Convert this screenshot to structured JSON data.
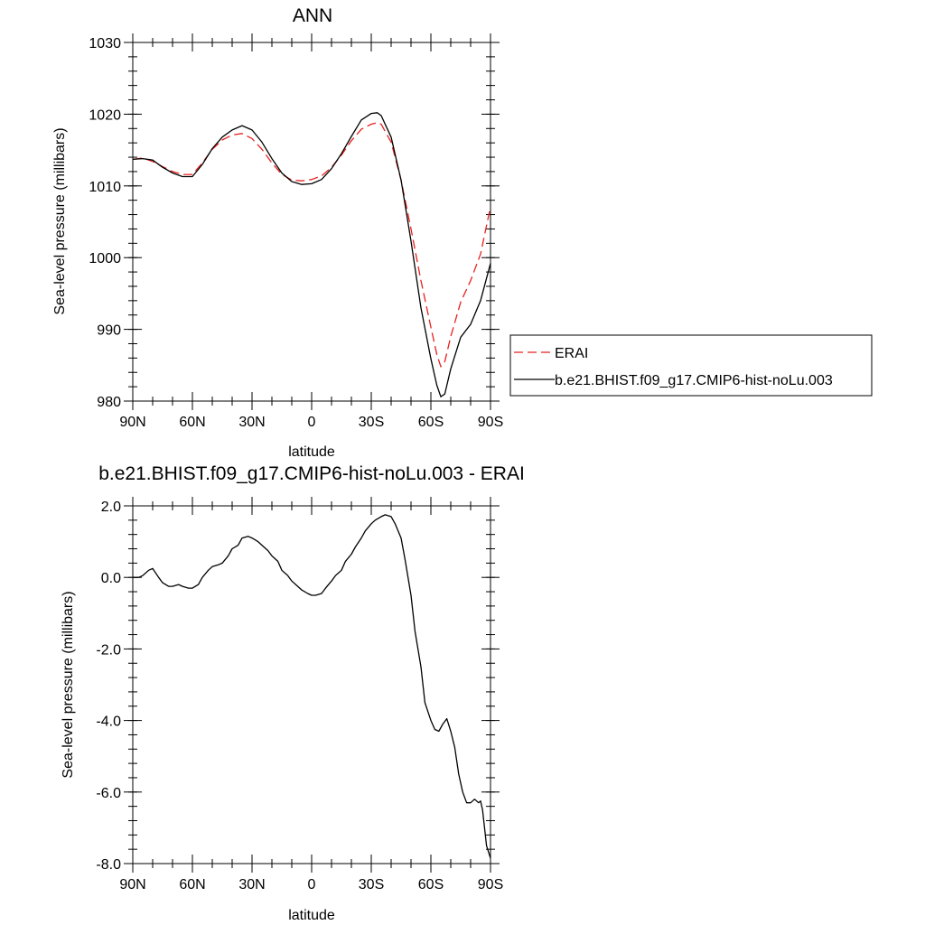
{
  "chart_data": [
    {
      "type": "line",
      "title": "ANN",
      "xlabel": "latitude",
      "ylabel": "Sea-level pressure (millibars)",
      "xlim": [
        90,
        -90
      ],
      "ylim": [
        980,
        1030
      ],
      "xtick_values": [
        90,
        60,
        30,
        0,
        -30,
        -60,
        -90
      ],
      "xtick_labels": [
        "90N",
        "60N",
        "30N",
        "0",
        "30S",
        "60S",
        "90S"
      ],
      "ytick_values": [
        980,
        990,
        1000,
        1010,
        1020,
        1030
      ],
      "ytick_labels": [
        "980",
        "990",
        "1000",
        "1010",
        "1020",
        "1030"
      ],
      "legend_position": "right",
      "series": [
        {
          "name": "ERAI",
          "color": "#e8211e",
          "dash": "dashed",
          "x": [
            90,
            85,
            80,
            75,
            70,
            65,
            60,
            55,
            50,
            45,
            40,
            35,
            30,
            25,
            20,
            15,
            10,
            5,
            0,
            -5,
            -10,
            -15,
            -20,
            -25,
            -30,
            -33,
            -35,
            -40,
            -45,
            -50,
            -55,
            -60,
            -63,
            -65,
            -67,
            -70,
            -75,
            -80,
            -85,
            -90
          ],
          "y": [
            1013.7,
            1013.9,
            1013.4,
            1012.7,
            1012.0,
            1011.6,
            1011.6,
            1013.2,
            1015.1,
            1016.4,
            1017.1,
            1017.3,
            1016.6,
            1015.1,
            1013.2,
            1011.6,
            1010.8,
            1010.7,
            1010.9,
            1011.4,
            1012.6,
            1014.3,
            1016.3,
            1017.9,
            1018.6,
            1018.8,
            1018.6,
            1016.1,
            1010.8,
            1004.0,
            996.8,
            990.3,
            986.5,
            984.8,
            985.5,
            989.0,
            993.8,
            996.8,
            1000.5,
            1007.1
          ]
        },
        {
          "name": "b.e21.BHIST.f09_g17.CMIP6-hist-noLu.003",
          "color": "#000000",
          "dash": "solid",
          "x": [
            90,
            85,
            80,
            75,
            70,
            65,
            60,
            55,
            50,
            45,
            40,
            35,
            30,
            25,
            20,
            15,
            10,
            5,
            0,
            -5,
            -10,
            -15,
            -20,
            -25,
            -30,
            -33,
            -35,
            -40,
            -45,
            -50,
            -55,
            -60,
            -63,
            -65,
            -67,
            -70,
            -75,
            -80,
            -85,
            -90
          ],
          "y": [
            1013.7,
            1013.8,
            1013.6,
            1012.6,
            1011.8,
            1011.3,
            1011.3,
            1013.0,
            1015.2,
            1016.8,
            1017.8,
            1018.4,
            1017.8,
            1016.1,
            1013.8,
            1011.8,
            1010.6,
            1010.2,
            1010.3,
            1010.9,
            1012.4,
            1014.5,
            1016.9,
            1019.2,
            1020.1,
            1020.2,
            1019.8,
            1016.8,
            1010.8,
            1002.3,
            993.0,
            985.9,
            982.2,
            980.6,
            981.0,
            984.5,
            988.9,
            990.7,
            994.0,
            999.2
          ]
        }
      ]
    },
    {
      "type": "line",
      "title": "b.e21.BHIST.f09_g17.CMIP6-hist-noLu.003 - ERAI",
      "xlabel": "latitude",
      "ylabel": "Sea-level pressure (millibars)",
      "xlim": [
        90,
        -90
      ],
      "ylim": [
        -8.0,
        2.0
      ],
      "xtick_values": [
        90,
        60,
        30,
        0,
        -30,
        -60,
        -90
      ],
      "xtick_labels": [
        "90N",
        "60N",
        "30N",
        "0",
        "30S",
        "60S",
        "90S"
      ],
      "ytick_values": [
        -8.0,
        -6.0,
        -4.0,
        -2.0,
        0.0,
        2.0
      ],
      "ytick_labels": [
        "-8.0",
        "-6.0",
        "-4.0",
        "-2.0",
        "0.0",
        "2.0"
      ],
      "series": [
        {
          "color": "#000000",
          "dash": "solid",
          "x": [
            90,
            87,
            85,
            82,
            80,
            77,
            75,
            72,
            70,
            67,
            65,
            62,
            60,
            57,
            55,
            52,
            50,
            47,
            45,
            42,
            40,
            37,
            35,
            32,
            30,
            27,
            25,
            22,
            20,
            17,
            15,
            12,
            10,
            7,
            5,
            2,
            0,
            -2,
            -5,
            -7,
            -10,
            -12,
            -15,
            -17,
            -20,
            -22,
            -25,
            -27,
            -30,
            -32,
            -35,
            -37,
            -40,
            -42,
            -45,
            -47,
            -50,
            -52,
            -55,
            -57,
            -60,
            -62,
            -64,
            -66,
            -68,
            -70,
            -72,
            -74,
            -76,
            -78,
            -80,
            -82,
            -84,
            -85,
            -86,
            -88,
            -90
          ],
          "y": [
            0.0,
            0.0,
            0.05,
            0.2,
            0.25,
            0.0,
            -0.15,
            -0.25,
            -0.25,
            -0.2,
            -0.25,
            -0.3,
            -0.3,
            -0.2,
            0.0,
            0.2,
            0.3,
            0.35,
            0.4,
            0.6,
            0.8,
            0.9,
            1.1,
            1.15,
            1.1,
            1.0,
            0.9,
            0.75,
            0.6,
            0.45,
            0.2,
            0.05,
            -0.1,
            -0.25,
            -0.35,
            -0.45,
            -0.5,
            -0.5,
            -0.45,
            -0.3,
            -0.1,
            0.05,
            0.2,
            0.45,
            0.65,
            0.85,
            1.1,
            1.3,
            1.5,
            1.6,
            1.7,
            1.75,
            1.7,
            1.5,
            1.1,
            0.5,
            -0.5,
            -1.5,
            -2.5,
            -3.5,
            -4.0,
            -4.25,
            -4.3,
            -4.1,
            -3.95,
            -4.3,
            -4.75,
            -5.5,
            -6.0,
            -6.3,
            -6.3,
            -6.2,
            -6.3,
            -6.25,
            -6.5,
            -7.5,
            -7.85
          ]
        }
      ]
    }
  ]
}
